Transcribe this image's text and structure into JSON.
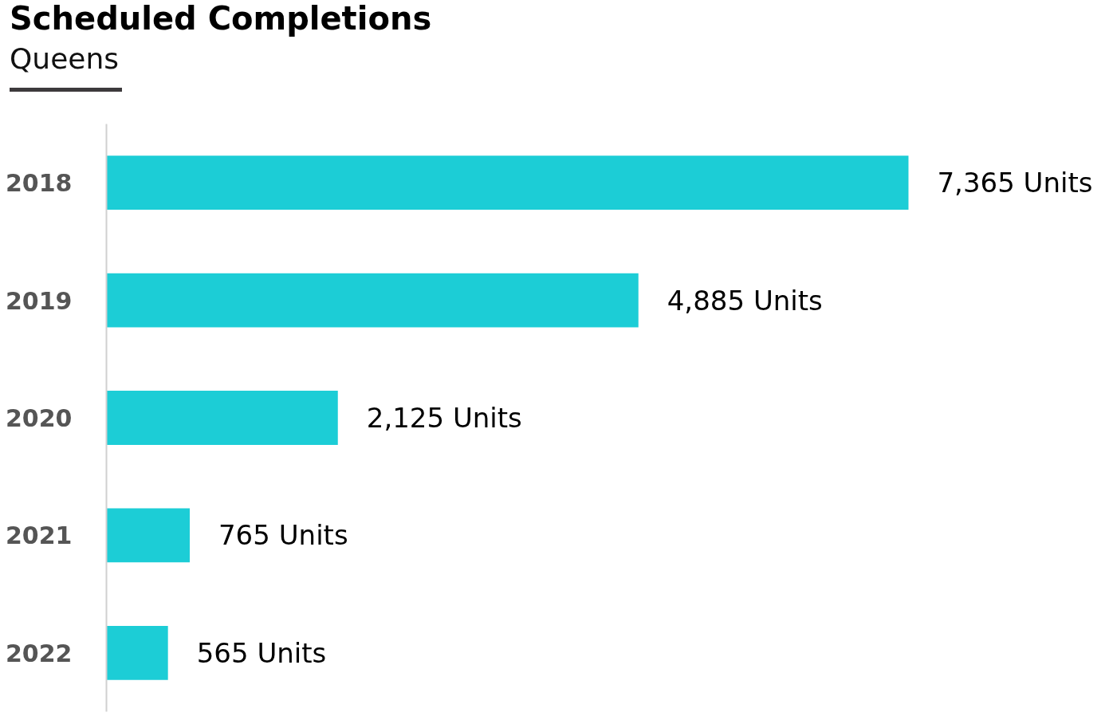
{
  "chart_data": {
    "type": "bar",
    "orientation": "horizontal",
    "title": "Scheduled Completions",
    "subtitle": "Queens",
    "categories": [
      "2018",
      "2019",
      "2020",
      "2021",
      "2022"
    ],
    "values": [
      7365,
      4885,
      2125,
      765,
      565
    ],
    "color": "#1ccdd6",
    "value_labels": [
      "7,365 Units",
      "4,885 Units",
      "2,125 Units",
      "765 Units",
      "565 Units"
    ],
    "tick_labels": "y"
  }
}
